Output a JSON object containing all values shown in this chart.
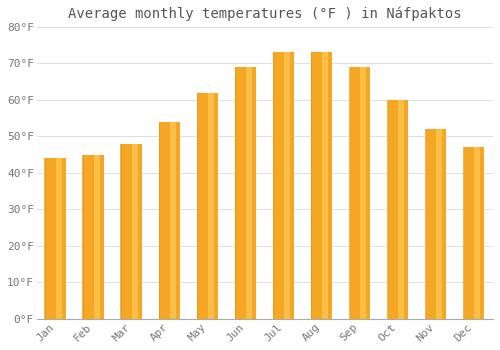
{
  "title": "Average monthly temperatures (°F ) in Náfpaktos",
  "months": [
    "Jan",
    "Feb",
    "Mar",
    "Apr",
    "May",
    "Jun",
    "Jul",
    "Aug",
    "Sep",
    "Oct",
    "Nov",
    "Dec"
  ],
  "values": [
    44,
    45,
    48,
    54,
    62,
    69,
    73,
    73,
    69,
    60,
    52,
    47
  ],
  "bar_color_face": "#F5A623",
  "bar_color_left": "#E8961A",
  "bar_color_right": "#FDD060",
  "background_color": "#FFFFFF",
  "grid_color": "#E0E0E0",
  "ylim": [
    0,
    80
  ],
  "ytick_step": 10,
  "title_fontsize": 10,
  "tick_fontsize": 8,
  "figsize": [
    5.0,
    3.5
  ],
  "dpi": 100,
  "bar_width": 0.55
}
